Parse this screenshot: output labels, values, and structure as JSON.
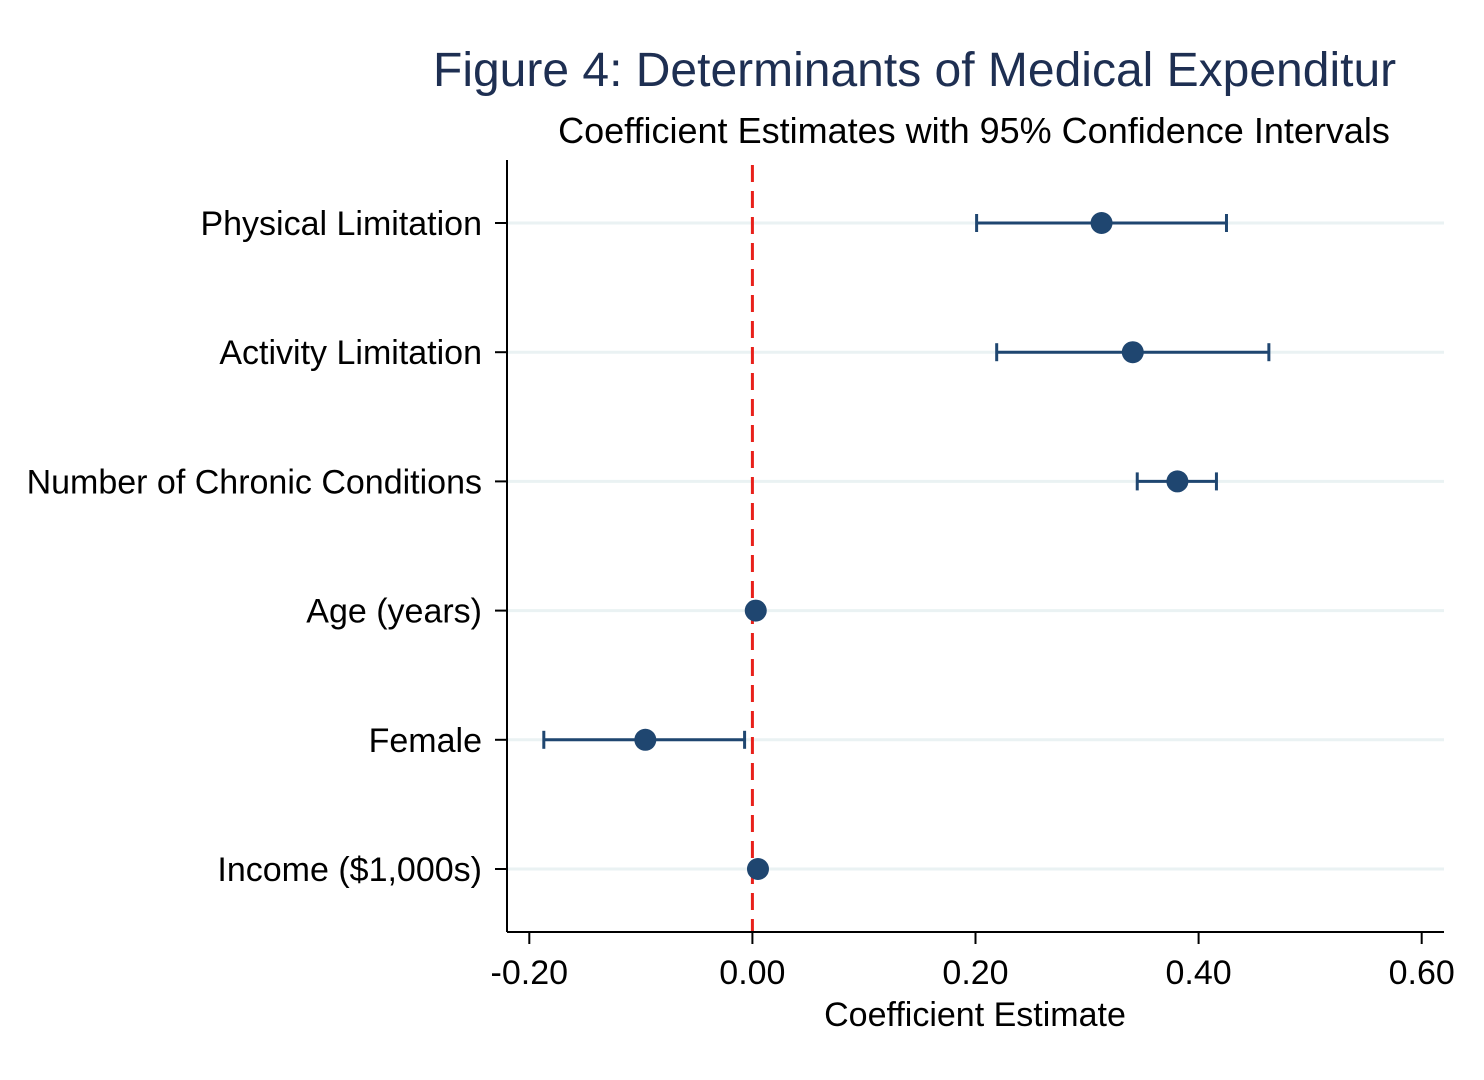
{
  "chart_data": {
    "type": "scatter",
    "title": "Figure 4: Determinants of Medical Expenditur",
    "subtitle": "Coefficient Estimates with 95% Confidence Intervals",
    "xlabel": "Coefficient Estimate",
    "ylabel": "",
    "xlim": [
      -0.22,
      0.62
    ],
    "xticks": [
      -0.2,
      0.0,
      0.2,
      0.4,
      0.6
    ],
    "xtick_labels": [
      "-0.20",
      "0.00",
      "0.20",
      "0.40",
      "0.60"
    ],
    "reference_line": {
      "x": 0,
      "style": "dashed",
      "color": "#e8201a"
    },
    "categories": [
      "Physical Limitation",
      "Activity Limitation",
      "Number of Chronic Conditions",
      "Age (years)",
      "Female",
      "Income ($1,000s)"
    ],
    "series": [
      {
        "estimates": [
          0.313,
          0.341,
          0.381,
          0.003,
          -0.096,
          0.005
        ],
        "ci_low": [
          0.201,
          0.219,
          0.345,
          0.0,
          -0.187,
          0.003
        ],
        "ci_high": [
          0.425,
          0.463,
          0.416,
          0.006,
          -0.007,
          0.007
        ]
      }
    ],
    "grid": true,
    "legend": "none",
    "colors": {
      "marker": "#1f4670",
      "grid": "#eaf2f3",
      "axis": "#000000",
      "title": "#1e2f52"
    }
  }
}
